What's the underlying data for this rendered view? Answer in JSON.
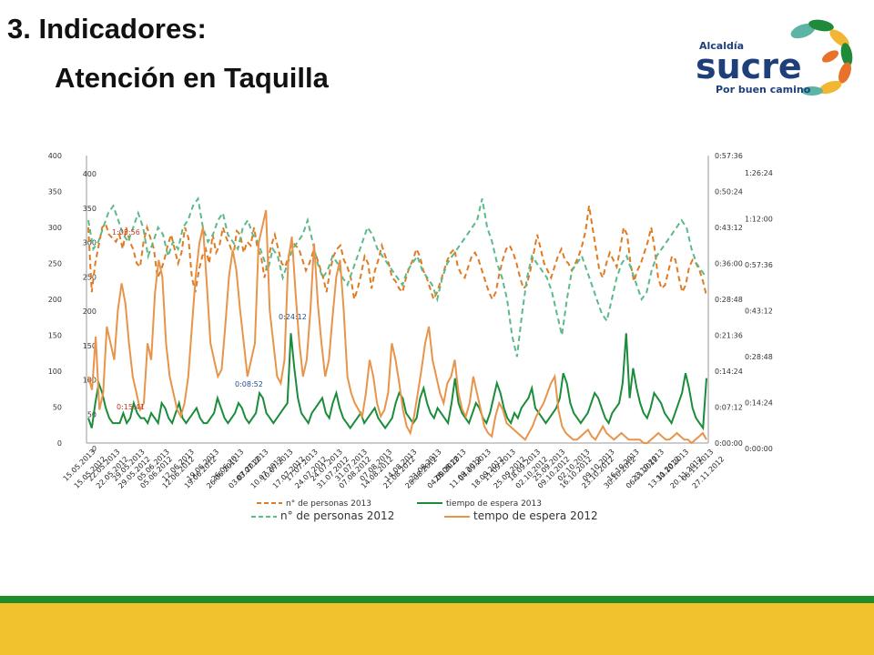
{
  "slide": {
    "title_line1": "3. Indicadores:",
    "title_line2": "Atención en Taquilla",
    "footer_green": "#1e8c2a",
    "footer_yellow": "#f2c12e"
  },
  "logo": {
    "top_text": "Alcaldía",
    "main_text": "sucre",
    "tagline": "Por buen camino",
    "brand_green": "#1f8a3a",
    "brand_orange": "#e8722a",
    "brand_yellow": "#f2b632",
    "brand_teal": "#5bb4a4"
  },
  "chart_data": {
    "type": "line",
    "title": "",
    "left_axis_outer": {
      "ticks": [
        "0",
        "50",
        "100",
        "150",
        "200",
        "250",
        "300",
        "350",
        "400"
      ],
      "range": [
        0,
        400
      ]
    },
    "left_axis_inner": {
      "ticks": [
        "0",
        "50",
        "100",
        "150",
        "200",
        "250",
        "300",
        "350",
        "400"
      ],
      "range": [
        0,
        400
      ]
    },
    "right_axis_inner": {
      "ticks": [
        "0:00:00",
        "0:07:12",
        "0:14:24",
        "0:21:36",
        "0:28:48",
        "0:36:00",
        "0:43:12",
        "0:50:24",
        "0:57:36"
      ],
      "range_minutes": [
        0,
        57.6
      ]
    },
    "right_axis_outer": {
      "ticks": [
        "0:00:00",
        "0:14:24",
        "0:28:48",
        "0:43:12",
        "0:57:36",
        "1:12:00",
        "1:26:24"
      ],
      "range_minutes": [
        0,
        86.4
      ]
    },
    "x_labels_2013": [
      "15.05.2013",
      "22.05.2013",
      "29.05.2013",
      "05.06.2013",
      "12.06.2013",
      "19.06.2013",
      "26.06.2013",
      "03.07.2013",
      "10.07.2013",
      "17.07.2013",
      "24.07.2013",
      "31.07.2013",
      "07.08.2013",
      "14.08.2013",
      "21.08.2013",
      "28.08.2013",
      "04.09.2013",
      "11.09.2013",
      "18.09.2013",
      "25.09.2013",
      "02.10.2013",
      "09.10.2013",
      "16.10.2013",
      "23.10.2013",
      "30.10.2013",
      "06.11.2013"
    ],
    "x_labels_2012": [
      "15.05.2012",
      "22.05.2012",
      "29.05.2012",
      "05.06.2012",
      "12.06.2012",
      "19.06.2012",
      "26.06.2012",
      "03.07.2012",
      "10.07.2012",
      "17.07.2012",
      "24.07.2012",
      "31.07.2012",
      "07.08.2012",
      "14.08.2012",
      "21.08.2012",
      "28.08.2012",
      "04.09.2012",
      "11.09.2012",
      "18.09.2012",
      "25.09.2012",
      "02.10.2012",
      "09.10.2012",
      "16.10.2012",
      "23.10.2012",
      "30.10.2012",
      "06.11.2012",
      "13.11.2012",
      "20.11.2012",
      "27.11.2012"
    ],
    "annotations": [
      {
        "text": "1:05:56",
        "color": "#c0392b"
      },
      {
        "text": "0:24:12",
        "color": "#1f4e8c"
      },
      {
        "text": "0:08:52",
        "color": "#1f4e8c"
      },
      {
        "text": "0:15:41",
        "color": "#c0392b"
      }
    ],
    "legend": {
      "placement": "bottom",
      "row1": [
        {
          "label": "n° de personas 2013",
          "color": "#e07b22",
          "style": "dashed"
        },
        {
          "label": "tiempo de espera 2013",
          "color": "#1a8c3a",
          "style": "solid"
        }
      ],
      "row2": [
        {
          "label": "n° de personas 2012",
          "color": "#5bb98a",
          "style": "dashed"
        },
        {
          "label": "tempo de espera 2012",
          "color": "#e8944a",
          "style": "solid"
        }
      ]
    },
    "series": [
      {
        "name": "n° de personas 2013",
        "color": "#e07b22",
        "dash": true,
        "values": [
          300,
          210,
          250,
          275,
          300,
          305,
          290,
          285,
          280,
          290,
          270,
          300,
          280,
          270,
          250,
          245,
          280,
          300,
          285,
          270,
          230,
          240,
          255,
          275,
          290,
          270,
          250,
          265,
          300,
          285,
          230,
          210,
          240,
          260,
          270,
          250,
          290,
          265,
          275,
          300,
          285,
          275,
          260,
          295,
          290,
          265,
          280,
          275,
          300,
          270,
          260,
          230,
          255,
          275,
          290,
          270,
          250,
          245,
          260,
          280,
          275,
          270,
          255,
          240,
          250,
          265,
          260,
          245,
          230,
          210,
          240,
          260,
          270,
          275,
          255,
          245,
          230,
          200,
          215,
          235,
          260,
          250,
          215,
          240,
          255,
          275,
          260,
          250,
          230,
          225,
          215,
          210,
          230,
          245,
          255,
          270,
          260,
          240,
          230,
          215,
          200,
          210,
          225,
          240,
          255,
          265,
          270,
          245,
          235,
          230,
          245,
          260,
          265,
          255,
          240,
          225,
          210,
          200,
          210,
          235,
          255,
          270,
          275,
          265,
          250,
          230,
          215,
          220,
          240,
          265,
          290,
          270,
          250,
          240,
          230,
          245,
          260,
          270,
          255,
          250,
          240,
          250,
          260,
          275,
          295,
          330,
          300,
          270,
          240,
          230,
          250,
          265,
          255,
          245,
          270,
          300,
          290,
          250,
          225,
          240,
          250,
          265,
          280,
          300,
          270,
          230,
          215,
          220,
          240,
          260,
          255,
          230,
          210,
          220,
          245,
          255,
          250,
          240,
          225,
          205
        ]
      },
      {
        "name": "tiempo de espera 2013",
        "color": "#1a8c3a",
        "dash": false,
        "values": [
          5,
          3,
          8,
          12,
          10,
          7,
          5,
          4,
          4,
          4,
          6,
          4,
          5,
          8,
          6,
          5,
          5,
          4,
          6,
          5,
          4,
          8,
          7,
          5,
          4,
          6,
          8,
          5,
          4,
          5,
          6,
          7,
          5,
          4,
          4,
          5,
          6,
          9,
          7,
          5,
          4,
          5,
          6,
          8,
          7,
          5,
          4,
          5,
          6,
          10,
          9,
          6,
          5,
          4,
          5,
          6,
          7,
          8,
          22,
          15,
          9,
          6,
          5,
          4,
          6,
          7,
          8,
          9,
          6,
          5,
          8,
          10,
          7,
          5,
          4,
          3,
          4,
          5,
          6,
          4,
          5,
          6,
          7,
          5,
          4,
          3,
          4,
          5,
          8,
          10,
          9,
          6,
          5,
          4,
          5,
          9,
          11,
          8,
          6,
          5,
          7,
          6,
          5,
          4,
          8,
          13,
          8,
          6,
          5,
          4,
          6,
          8,
          7,
          5,
          4,
          6,
          9,
          12,
          10,
          7,
          5,
          4,
          6,
          5,
          7,
          8,
          9,
          11,
          7,
          6,
          5,
          4,
          5,
          6,
          7,
          9,
          14,
          12,
          8,
          6,
          5,
          4,
          5,
          6,
          8,
          10,
          9,
          7,
          5,
          4,
          6,
          7,
          8,
          12,
          22,
          9,
          15,
          11,
          8,
          6,
          5,
          7,
          10,
          9,
          8,
          6,
          5,
          4,
          6,
          8,
          10,
          14,
          11,
          7,
          5,
          4,
          3,
          13
        ]
      },
      {
        "name": "n° de personas 2012",
        "color": "#5bb98a",
        "dash": true,
        "values": [
          310,
          270,
          280,
          300,
          320,
          330,
          310,
          290,
          280,
          300,
          320,
          300,
          260,
          280,
          300,
          290,
          260,
          280,
          270,
          300,
          310,
          330,
          340,
          300,
          280,
          290,
          310,
          320,
          290,
          280,
          270,
          300,
          310,
          290,
          280,
          260,
          240,
          270,
          260,
          230,
          250,
          270,
          280,
          290,
          310,
          280,
          250,
          230,
          240,
          260,
          250,
          230,
          220,
          240,
          260,
          280,
          300,
          290,
          270,
          260,
          250,
          240,
          230,
          220,
          240,
          250,
          260,
          240,
          230,
          220,
          200,
          230,
          250,
          260,
          270,
          280,
          290,
          300,
          310,
          340,
          300,
          280,
          250,
          230,
          200,
          150,
          120,
          180,
          230,
          260,
          250,
          240,
          230,
          210,
          180,
          150,
          200,
          240,
          250,
          260,
          240,
          220,
          200,
          180,
          170,
          200,
          230,
          250,
          260,
          240,
          220,
          200,
          210,
          240,
          260,
          270,
          280,
          290,
          300,
          310,
          300,
          270,
          250,
          240,
          230
        ]
      },
      {
        "name": "tempo de espera 2012",
        "color": "#e8944a",
        "dash": false,
        "values": [
          20,
          16,
          32,
          10,
          15,
          35,
          30,
          25,
          40,
          48,
          42,
          30,
          20,
          15,
          10,
          12,
          30,
          25,
          45,
          55,
          50,
          30,
          20,
          15,
          10,
          8,
          12,
          20,
          35,
          50,
          60,
          65,
          48,
          30,
          25,
          20,
          22,
          35,
          50,
          58,
          52,
          40,
          30,
          20,
          25,
          30,
          60,
          65,
          70,
          40,
          30,
          20,
          18,
          25,
          55,
          62,
          45,
          30,
          20,
          25,
          40,
          60,
          42,
          30,
          20,
          25,
          38,
          50,
          55,
          40,
          20,
          15,
          12,
          10,
          8,
          15,
          25,
          20,
          12,
          8,
          10,
          15,
          30,
          25,
          18,
          10,
          5,
          3,
          8,
          15,
          22,
          30,
          35,
          25,
          20,
          15,
          12,
          18,
          20,
          25,
          15,
          10,
          8,
          12,
          20,
          15,
          10,
          5,
          3,
          2,
          8,
          12,
          10,
          6,
          5,
          4,
          3,
          2,
          1,
          3,
          5,
          8,
          10,
          12,
          15,
          18,
          20,
          10,
          5,
          3,
          2,
          1,
          1,
          2,
          3,
          4,
          2,
          1,
          3,
          5,
          3,
          2,
          1,
          2,
          3,
          2,
          1,
          1,
          1,
          1,
          0,
          0,
          1,
          2,
          3,
          2,
          1,
          1,
          2,
          3,
          2,
          1,
          1,
          0,
          1,
          2,
          3,
          1
        ]
      }
    ]
  }
}
